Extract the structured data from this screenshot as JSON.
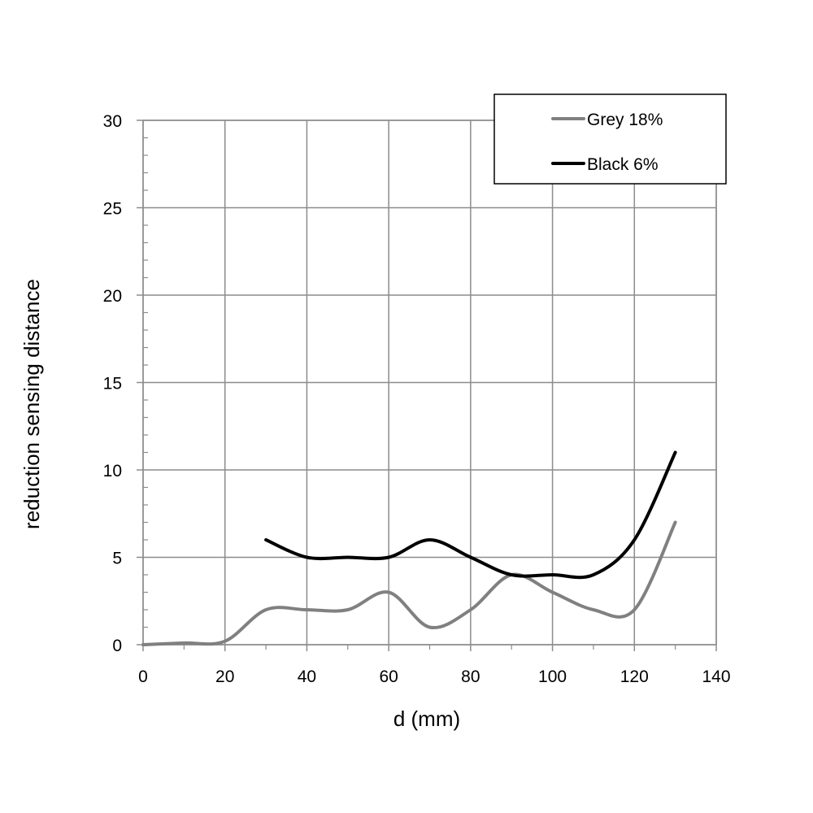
{
  "chart_data": {
    "type": "line",
    "xlabel": "d (mm)",
    "ylabel": "reduction sensing distance",
    "xlim": [
      0,
      140
    ],
    "ylim": [
      0,
      30
    ],
    "x_ticks": [
      0,
      20,
      40,
      60,
      80,
      100,
      120,
      140
    ],
    "y_ticks": [
      0,
      5,
      10,
      15,
      20,
      25,
      30
    ],
    "grid": true,
    "legend_position": "top-right",
    "smooth": true,
    "series": [
      {
        "name": "Grey 18%",
        "color": "#808080",
        "points": [
          [
            0,
            0
          ],
          [
            10,
            0.1
          ],
          [
            20,
            0.2
          ],
          [
            30,
            2
          ],
          [
            40,
            2
          ],
          [
            50,
            2
          ],
          [
            60,
            3
          ],
          [
            70,
            1
          ],
          [
            80,
            2
          ],
          [
            90,
            4
          ],
          [
            100,
            3
          ],
          [
            110,
            2
          ],
          [
            120,
            2
          ],
          [
            130,
            7
          ]
        ]
      },
      {
        "name": "Black 6%",
        "color": "#000000",
        "points": [
          [
            30,
            6
          ],
          [
            40,
            5
          ],
          [
            50,
            5
          ],
          [
            60,
            5
          ],
          [
            70,
            6
          ],
          [
            80,
            5
          ],
          [
            90,
            4
          ],
          [
            100,
            4
          ],
          [
            110,
            4
          ],
          [
            120,
            6
          ],
          [
            130,
            11
          ]
        ]
      }
    ]
  }
}
